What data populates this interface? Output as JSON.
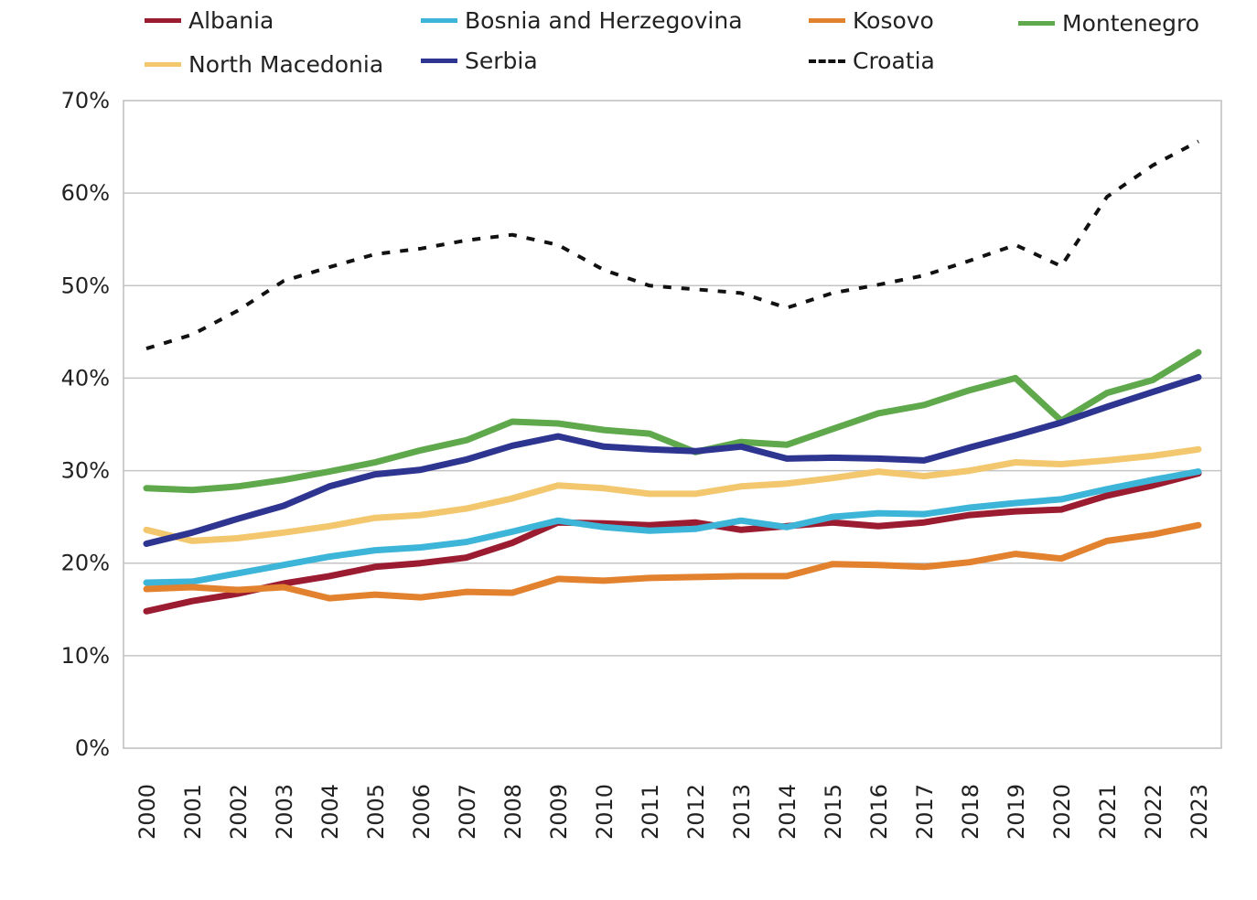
{
  "chart_data": {
    "type": "line",
    "title": "",
    "xlabel": "",
    "ylabel": "",
    "x": [
      "2000",
      "2001",
      "2002",
      "2003",
      "2004",
      "2005",
      "2006",
      "2007",
      "2008",
      "2009",
      "2010",
      "2011",
      "2012",
      "2013",
      "2014",
      "2015",
      "2016",
      "2017",
      "2018",
      "2019",
      "2020",
      "2021",
      "2022",
      "2023"
    ],
    "ylim": [
      0,
      70
    ],
    "yticks": [
      "0%",
      "10%",
      "20%",
      "30%",
      "40%",
      "50%",
      "60%",
      "70%"
    ],
    "grid": true,
    "legend_position": "top",
    "series": [
      {
        "name": "Albania",
        "color": "#9b1b30",
        "dash": false,
        "values": [
          14.8,
          15.9,
          16.7,
          17.8,
          18.6,
          19.6,
          20.0,
          20.6,
          22.2,
          24.4,
          24.3,
          24.1,
          24.4,
          23.6,
          24.0,
          24.4,
          24.0,
          24.4,
          25.2,
          25.6,
          25.8,
          27.3,
          28.4,
          29.7
        ]
      },
      {
        "name": "Bosnia and Herzegovina",
        "color": "#3db5d8",
        "dash": false,
        "values": [
          17.9,
          18.0,
          18.9,
          19.8,
          20.7,
          21.4,
          21.7,
          22.3,
          23.4,
          24.6,
          23.9,
          23.5,
          23.7,
          24.6,
          23.9,
          25.0,
          25.4,
          25.3,
          26.0,
          26.5,
          26.9,
          28.0,
          29.0,
          29.9
        ]
      },
      {
        "name": "Kosovo",
        "color": "#e2812e",
        "dash": false,
        "values": [
          17.2,
          17.4,
          17.1,
          17.4,
          16.2,
          16.6,
          16.3,
          16.9,
          16.8,
          18.3,
          18.1,
          18.4,
          18.5,
          18.6,
          18.6,
          19.9,
          19.8,
          19.6,
          20.1,
          21.0,
          20.5,
          22.4,
          23.1,
          24.1
        ]
      },
      {
        "name": "Montenegro",
        "color": "#5fa84b",
        "dash": false,
        "values": [
          28.1,
          27.9,
          28.3,
          29.0,
          29.9,
          30.9,
          32.2,
          33.3,
          35.3,
          35.1,
          34.4,
          34.0,
          32.0,
          33.1,
          32.8,
          34.5,
          36.2,
          37.1,
          38.7,
          40.0,
          35.4,
          38.4,
          39.8,
          42.8
        ]
      },
      {
        "name": "North Macedonia",
        "color": "#f3c76e",
        "dash": false,
        "values": [
          23.6,
          22.4,
          22.7,
          23.3,
          24.0,
          24.9,
          25.2,
          25.9,
          27.0,
          28.4,
          28.1,
          27.5,
          27.5,
          28.3,
          28.6,
          29.2,
          29.9,
          29.4,
          30.0,
          30.9,
          30.7,
          31.1,
          31.6,
          32.3
        ]
      },
      {
        "name": "Serbia",
        "color": "#2e3591",
        "dash": false,
        "values": [
          22.1,
          23.3,
          24.8,
          26.2,
          28.3,
          29.6,
          30.1,
          31.2,
          32.7,
          33.7,
          32.6,
          32.3,
          32.1,
          32.6,
          31.3,
          31.4,
          31.3,
          31.1,
          32.5,
          33.8,
          35.2,
          36.9,
          38.5,
          40.1
        ]
      },
      {
        "name": "Croatia",
        "color": "#111111",
        "dash": true,
        "values": [
          43.2,
          44.7,
          47.3,
          50.5,
          52.0,
          53.4,
          54.0,
          54.9,
          55.5,
          54.4,
          51.7,
          50.0,
          49.6,
          49.2,
          47.6,
          49.2,
          50.1,
          51.1,
          52.7,
          54.4,
          52.1,
          59.6,
          63.0,
          65.6
        ]
      }
    ]
  },
  "legend": {
    "albania": "Albania",
    "bosnia": "Bosnia and Herzegovina",
    "kosovo": "Kosovo",
    "montenegro": "Montenegro",
    "north_macedonia": "North Macedonia",
    "serbia": "Serbia",
    "croatia": "Croatia"
  }
}
